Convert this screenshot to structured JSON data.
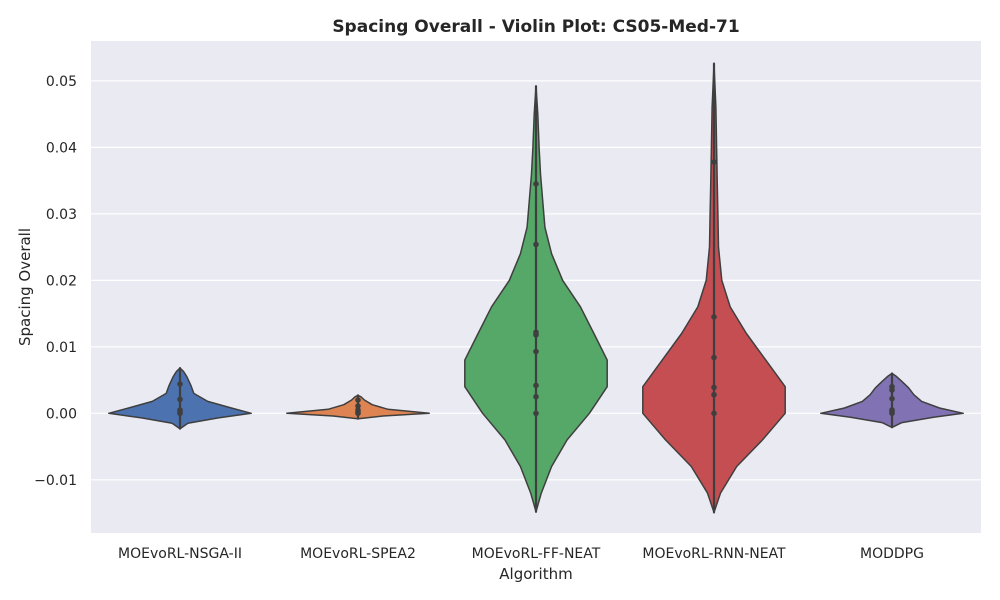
{
  "chart_data": {
    "type": "violin",
    "title": "Spacing Overall - Violin Plot: CS05-Med-71",
    "xlabel": "Algorithm",
    "ylabel": "Spacing Overall",
    "ylim": [
      -0.018,
      0.056
    ],
    "yticks": [
      -0.01,
      0.0,
      0.01,
      0.02,
      0.03,
      0.04,
      0.05
    ],
    "ytick_labels": [
      "−0.01",
      "0.00",
      "0.01",
      "0.02",
      "0.03",
      "0.04",
      "0.05"
    ],
    "grid": true,
    "categories": [
      "MOEvoRL-NSGA-II",
      "MOEvoRL-SPEA2",
      "MOEvoRL-FF-NEAT",
      "MOEvoRL-RNN-NEAT",
      "MODDPG"
    ],
    "colors": [
      "#4c72b0",
      "#dd8452",
      "#55a868",
      "#c44e52",
      "#8172b3"
    ],
    "background": "#eaeaf2",
    "violins": [
      {
        "name": "MOEvoRL-NSGA-II",
        "min": -0.0023,
        "max": 0.0068,
        "density": [
          [
            -0.0023,
            0.002
          ],
          [
            -0.0015,
            0.08
          ],
          [
            -0.0007,
            0.38
          ],
          [
            0.0,
            0.72
          ],
          [
            0.0008,
            0.52
          ],
          [
            0.0018,
            0.28
          ],
          [
            0.003,
            0.14
          ],
          [
            0.0042,
            0.11
          ],
          [
            0.0055,
            0.07
          ],
          [
            0.0063,
            0.035
          ],
          [
            0.0068,
            0.0
          ]
        ],
        "points": [
          0.0,
          0.0003,
          0.0005,
          0.0021,
          0.0044
        ]
      },
      {
        "name": "MOEvoRL-SPEA2",
        "min": -0.0008,
        "max": 0.0027,
        "density": [
          [
            -0.0008,
            0.02
          ],
          [
            -0.0004,
            0.35
          ],
          [
            0.0,
            1.0
          ],
          [
            0.0006,
            0.42
          ],
          [
            0.0013,
            0.2
          ],
          [
            0.002,
            0.09
          ],
          [
            0.0025,
            0.04
          ],
          [
            0.0027,
            0.0
          ]
        ],
        "points": [
          0.0,
          0.0002,
          0.0005,
          0.0011,
          0.002
        ]
      },
      {
        "name": "MOEvoRL-FF-NEAT",
        "min": -0.0148,
        "max": 0.0492,
        "density": [
          [
            -0.0148,
            0.0
          ],
          [
            -0.012,
            0.012
          ],
          [
            -0.008,
            0.035
          ],
          [
            -0.004,
            0.07
          ],
          [
            0.0,
            0.12
          ],
          [
            0.004,
            0.16
          ],
          [
            0.008,
            0.16
          ],
          [
            0.012,
            0.13
          ],
          [
            0.016,
            0.1
          ],
          [
            0.02,
            0.06
          ],
          [
            0.024,
            0.035
          ],
          [
            0.028,
            0.02
          ],
          [
            0.032,
            0.015
          ],
          [
            0.036,
            0.01
          ],
          [
            0.04,
            0.007
          ],
          [
            0.045,
            0.004
          ],
          [
            0.0492,
            0.0
          ]
        ],
        "points": [
          0.0,
          0.0025,
          0.0042,
          0.0093,
          0.0118,
          0.0122,
          0.0254,
          0.0345
        ]
      },
      {
        "name": "MOEvoRL-RNN-NEAT",
        "min": -0.0149,
        "max": 0.0526,
        "density": [
          [
            -0.0149,
            0.0
          ],
          [
            -0.012,
            0.01
          ],
          [
            -0.008,
            0.035
          ],
          [
            -0.004,
            0.075
          ],
          [
            0.0,
            0.11
          ],
          [
            0.004,
            0.11
          ],
          [
            0.008,
            0.08
          ],
          [
            0.012,
            0.05
          ],
          [
            0.016,
            0.025
          ],
          [
            0.02,
            0.012
          ],
          [
            0.025,
            0.007
          ],
          [
            0.03,
            0.006
          ],
          [
            0.035,
            0.005
          ],
          [
            0.04,
            0.004
          ],
          [
            0.046,
            0.003
          ],
          [
            0.0526,
            0.0
          ]
        ],
        "points": [
          0.0,
          0.0028,
          0.0039,
          0.0084,
          0.0145,
          0.0378
        ]
      },
      {
        "name": "MODDPG",
        "min": -0.0021,
        "max": 0.006,
        "density": [
          [
            -0.0021,
            0.002
          ],
          [
            -0.0014,
            0.1
          ],
          [
            -0.0006,
            0.42
          ],
          [
            0.0,
            0.72
          ],
          [
            0.0008,
            0.48
          ],
          [
            0.0018,
            0.3
          ],
          [
            0.0028,
            0.22
          ],
          [
            0.0038,
            0.17
          ],
          [
            0.0048,
            0.1
          ],
          [
            0.0056,
            0.04
          ],
          [
            0.006,
            0.0
          ]
        ],
        "points": [
          0.0,
          0.0003,
          0.0005,
          0.0022,
          0.0035,
          0.004
        ]
      }
    ]
  }
}
